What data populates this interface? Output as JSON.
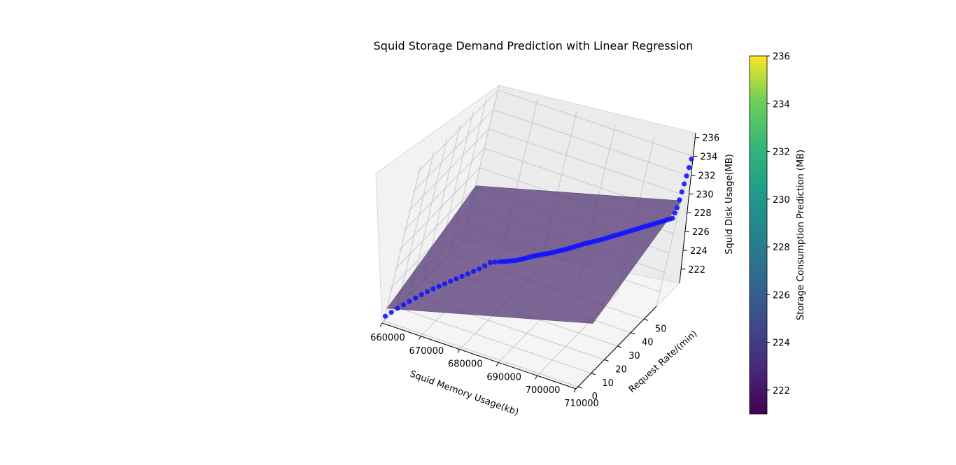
{
  "chart_data": {
    "type": "scatter3d",
    "title": "Squid Storage Demand Prediction with Linear Regression",
    "xlabel": "Squid Memory Usage(kb)",
    "ylabel": "Request Rate/(min)",
    "zlabel": "Squid Disk Usage(MB)",
    "x_ticks": [
      "660000",
      "670000",
      "680000",
      "690000",
      "700000",
      "710000"
    ],
    "y_ticks": [
      "0",
      "10",
      "20",
      "30",
      "40",
      "50"
    ],
    "z_ticks": [
      "222",
      "224",
      "226",
      "228",
      "230",
      "232",
      "234",
      "236"
    ],
    "grid": true,
    "point_color": "#1414ff",
    "plane_color": "#5a3d7a",
    "colorbar": {
      "label": "Storage Consumption Prediction (MB)",
      "min": 221,
      "max": 236,
      "ticks": [
        "222",
        "224",
        "226",
        "228",
        "230",
        "232",
        "234",
        "236"
      ],
      "colormap": "viridis"
    },
    "series": [
      {
        "type": "scatter",
        "points": [
          {
            "x": 660000,
            "y": 0,
            "z": 221
          },
          {
            "x": 662000,
            "y": 2,
            "z": 221.8
          },
          {
            "x": 664000,
            "y": 4,
            "z": 222.5
          },
          {
            "x": 666000,
            "y": 6,
            "z": 223.2
          },
          {
            "x": 668000,
            "y": 8,
            "z": 223.8
          },
          {
            "x": 670000,
            "y": 10,
            "z": 224.3
          },
          {
            "x": 672000,
            "y": 12,
            "z": 224.8
          },
          {
            "x": 674000,
            "y": 14,
            "z": 225.3
          },
          {
            "x": 676000,
            "y": 16,
            "z": 225.8
          },
          {
            "x": 678000,
            "y": 17,
            "z": 226.6
          },
          {
            "x": 680000,
            "y": 18,
            "z": 226.8
          },
          {
            "x": 683000,
            "y": 22,
            "z": 226.8
          },
          {
            "x": 686000,
            "y": 26,
            "z": 227.1
          },
          {
            "x": 689000,
            "y": 29,
            "z": 227.4
          },
          {
            "x": 692000,
            "y": 32,
            "z": 227.8
          },
          {
            "x": 695000,
            "y": 36,
            "z": 228.2
          },
          {
            "x": 698000,
            "y": 39,
            "z": 228.6
          },
          {
            "x": 701000,
            "y": 43,
            "z": 229.0
          },
          {
            "x": 704000,
            "y": 47,
            "z": 229.4
          },
          {
            "x": 707000,
            "y": 51,
            "z": 229.8
          },
          {
            "x": 710000,
            "y": 55,
            "z": 230.2
          },
          {
            "x": 710000,
            "y": 57,
            "z": 231.0
          },
          {
            "x": 710000,
            "y": 58,
            "z": 232.5
          },
          {
            "x": 710000,
            "y": 59,
            "z": 234.0
          },
          {
            "x": 710000,
            "y": 60,
            "z": 235.6
          }
        ]
      },
      {
        "type": "regression_plane",
        "x_range": [
          660000,
          710000
        ],
        "y_range": [
          0,
          60
        ],
        "z_range": [
          221.8,
          231.3
        ]
      }
    ]
  }
}
